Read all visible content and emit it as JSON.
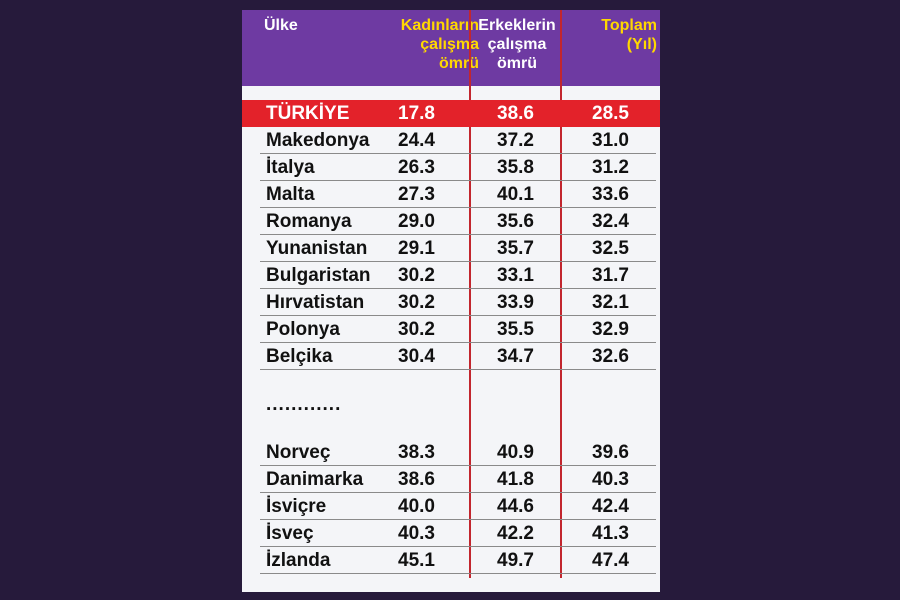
{
  "chart_data": {
    "type": "table",
    "columns": [
      "Ülke",
      "Kadınların\nçalışma\nömrü",
      "Erkeklerin\nçalışma\nömrü",
      "Toplam\n(Yıl)"
    ],
    "highlight_row": {
      "country": "TÜRKİYE",
      "women": "17.8",
      "men": "38.6",
      "total": "28.5"
    },
    "rows_top": [
      {
        "country": "Makedonya",
        "women": "24.4",
        "men": "37.2",
        "total": "31.0"
      },
      {
        "country": "İtalya",
        "women": "26.3",
        "men": "35.8",
        "total": "31.2"
      },
      {
        "country": "Malta",
        "women": "27.3",
        "men": "40.1",
        "total": "33.6"
      },
      {
        "country": "Romanya",
        "women": "29.0",
        "men": "35.6",
        "total": "32.4"
      },
      {
        "country": "Yunanistan",
        "women": "29.1",
        "men": "35.7",
        "total": "32.5"
      },
      {
        "country": "Bulgaristan",
        "women": "30.2",
        "men": "33.1",
        "total": "31.7"
      },
      {
        "country": "Hırvatistan",
        "women": "30.2",
        "men": "33.9",
        "total": "32.1"
      },
      {
        "country": "Polonya",
        "women": "30.2",
        "men": "35.5",
        "total": "32.9"
      },
      {
        "country": "Belçika",
        "women": "30.4",
        "men": "34.7",
        "total": "32.6"
      }
    ],
    "ellipsis": "............",
    "rows_bottom": [
      {
        "country": "Norveç",
        "women": "38.3",
        "men": "40.9",
        "total": "39.6"
      },
      {
        "country": "Danimarka",
        "women": "38.6",
        "men": "41.8",
        "total": "40.3"
      },
      {
        "country": "İsviçre",
        "women": "40.0",
        "men": "44.6",
        "total": "42.4"
      },
      {
        "country": "İsveç",
        "women": "40.3",
        "men": "42.2",
        "total": "41.3"
      },
      {
        "country": "İzlanda",
        "women": "45.1",
        "men": "49.7",
        "total": "47.4"
      }
    ]
  },
  "colors": {
    "background": "#261a3b",
    "header": "#6e3aa2",
    "highlight": "#e3222a",
    "accent_text": "#ffd800"
  }
}
